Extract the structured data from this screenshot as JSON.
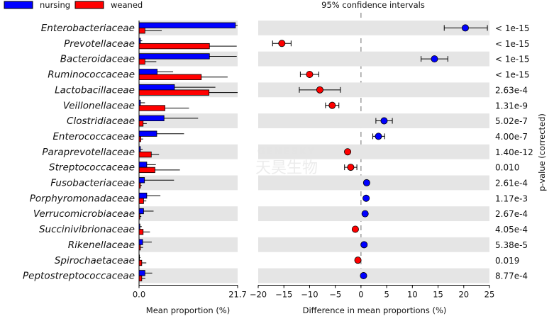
{
  "chart_data": {
    "type": "bar",
    "title": "95% confidence intervals",
    "legend": [
      {
        "name": "nursing",
        "color": "#0000ff"
      },
      {
        "name": "weaned",
        "color": "#ff0000"
      }
    ],
    "legend_position": "top-left",
    "categories": [
      "Enterobacteriaceae",
      "Prevotellaceae",
      "Bacteroidaceae",
      "Ruminococcaceae",
      "Lactobacillaceae",
      "Veillonellaceae",
      "Clostridiaceae",
      "Enterococcaceae",
      "Paraprevotellaceae",
      "Streptococcaceae",
      "Fusobacteriaceae",
      "Porphyromonadaceae",
      "Verrucomicrobiaceae",
      "Succinivibrionaceae",
      "Rikenellaceae",
      "Spirochaetaceae",
      "Peptostreptococcaceae"
    ],
    "left_panel": {
      "xlabel": "Mean proportion (%)",
      "xlim": [
        0,
        21.7
      ],
      "ticks": [
        "0.0",
        "21.7"
      ],
      "series": [
        {
          "name": "nursing",
          "color": "#0000ff",
          "values": [
            21.2,
            0.3,
            15.5,
            4.0,
            7.8,
            0.3,
            5.5,
            3.9,
            0.3,
            1.7,
            1.2,
            1.7,
            1.0,
            0.2,
            0.8,
            0.1,
            1.3
          ],
          "error": [
            0.8,
            0.4,
            6.0,
            3.5,
            9.0,
            1.0,
            7.5,
            6.0,
            0.5,
            2.0,
            6.5,
            3.0,
            2.2,
            0.4,
            2.0,
            0.2,
            1.6
          ]
        },
        {
          "name": "weaned",
          "color": "#ff0000",
          "values": [
            1.3,
            15.5,
            1.3,
            13.7,
            15.4,
            5.7,
            0.9,
            0.4,
            2.7,
            3.5,
            0.3,
            1.0,
            0.2,
            0.9,
            0.3,
            0.6,
            0.6
          ],
          "error": [
            3.7,
            6.0,
            2.5,
            5.8,
            6.5,
            5.3,
            0.8,
            0.5,
            1.7,
            5.5,
            0.3,
            0.6,
            0.3,
            1.5,
            0.6,
            1.0,
            0.8
          ]
        }
      ]
    },
    "right_panel": {
      "xlabel": "Difference in mean proportions (%)",
      "xlim": [
        -20,
        25
      ],
      "ticks": [
        -20,
        -15,
        -10,
        -5,
        0,
        5,
        10,
        15,
        20,
        25
      ],
      "diff": [
        20.3,
        -15.4,
        14.3,
        -10.0,
        -8.0,
        -5.6,
        4.5,
        3.4,
        -2.6,
        -2.0,
        1.1,
        1.0,
        0.8,
        -1.1,
        0.6,
        -0.6,
        0.5
      ],
      "ci_low": [
        16.2,
        -17.2,
        11.7,
        -11.8,
        -12.0,
        -6.9,
        2.9,
        2.3,
        -2.9,
        -3.2,
        0.9,
        0.8,
        0.7,
        -1.3,
        0.4,
        -0.8,
        0.3
      ],
      "ci_high": [
        24.6,
        -13.6,
        16.9,
        -8.2,
        -4.0,
        -4.3,
        6.1,
        4.6,
        -2.3,
        -0.8,
        1.3,
        1.2,
        0.9,
        -0.9,
        0.8,
        -0.4,
        0.7
      ]
    },
    "pvalue_label": "p-value (corrected)",
    "pvalues": [
      "< 1e-15",
      "< 1e-15",
      "< 1e-15",
      "< 1e-15",
      "2.63e-4",
      "1.31e-9",
      "5.02e-7",
      "4.00e-7",
      "1.40e-12",
      "0.010",
      "2.61e-4",
      "1.17e-3",
      "2.67e-4",
      "4.05e-4",
      "5.38e-5",
      "0.019",
      "8.77e-4"
    ],
    "row_shading": "alternating grey"
  },
  "watermark": "GENESKY 天昊生物"
}
